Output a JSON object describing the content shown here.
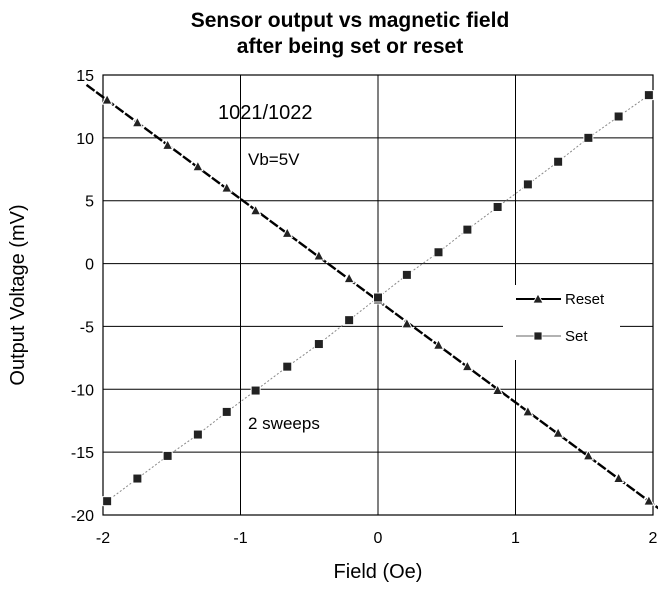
{
  "chart_data": {
    "type": "scatter",
    "title": "Sensor output vs magnetic field",
    "subtitle": "after being set or reset",
    "xlabel": "Field (Oe)",
    "ylabel": "Output Voltage (mV)",
    "xlim": [
      -2,
      2
    ],
    "ylim": [
      -20,
      15
    ],
    "x_ticks": [
      -2,
      -1,
      0,
      1,
      2
    ],
    "y_ticks": [
      -20,
      -15,
      -10,
      -5,
      0,
      5,
      10,
      15
    ],
    "x_tick_labels": [
      "-2",
      "-1",
      "0",
      "1",
      "2"
    ],
    "y_tick_labels": [
      "-20",
      "-15",
      "-10",
      "-5",
      "0",
      "5",
      "10",
      "15"
    ],
    "grid": true,
    "legend_position": "right",
    "annotations": [
      "1021/1022",
      "Vb=5V",
      "2 sweeps"
    ],
    "series": [
      {
        "name": "Reset",
        "marker": "triangle",
        "line": "dashed",
        "color": "#000000",
        "x": [
          -1.97,
          -1.75,
          -1.53,
          -1.31,
          -1.1,
          -0.89,
          -0.66,
          -0.43,
          -0.21,
          0.0,
          0.21,
          0.44,
          0.65,
          0.87,
          1.09,
          1.31,
          1.53,
          1.75,
          1.97
        ],
        "y": [
          13.0,
          11.2,
          9.4,
          7.7,
          6.0,
          4.2,
          2.4,
          0.6,
          -1.2,
          -2.9,
          -4.8,
          -6.5,
          -8.2,
          -10.1,
          -11.8,
          -13.5,
          -15.3,
          -17.1,
          -18.9
        ]
      },
      {
        "name": "Set",
        "marker": "square",
        "line": "dotted",
        "color": "#222222",
        "x": [
          -1.97,
          -1.75,
          -1.53,
          -1.31,
          -1.1,
          -0.89,
          -0.66,
          -0.43,
          -0.21,
          0.0,
          0.21,
          0.44,
          0.65,
          0.87,
          1.09,
          1.31,
          1.53,
          1.75,
          1.97
        ],
        "y": [
          -18.9,
          -17.1,
          -15.3,
          -13.6,
          -11.8,
          -10.1,
          -8.2,
          -6.4,
          -4.5,
          -2.7,
          -0.9,
          0.9,
          2.7,
          4.5,
          6.3,
          8.1,
          10.0,
          11.7,
          13.4
        ]
      }
    ]
  }
}
